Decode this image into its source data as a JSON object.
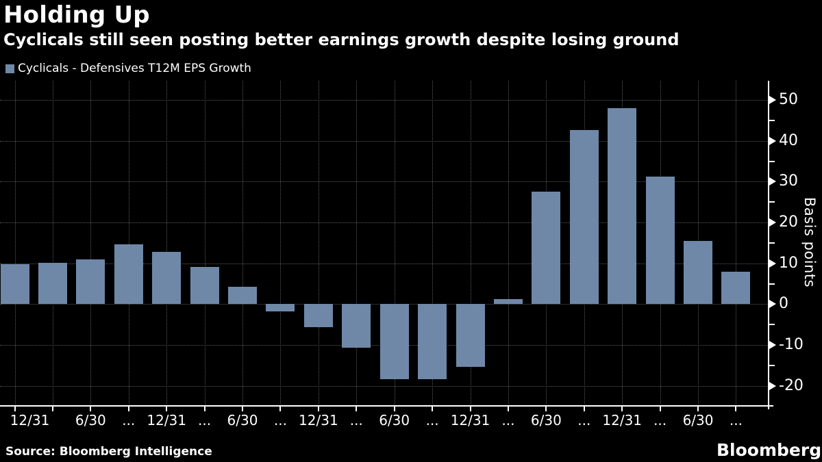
{
  "header": {
    "title": "Holding Up",
    "subtitle": "Cyclicals still seen posting better earnings growth despite losing ground"
  },
  "legend": {
    "label": "Cyclicals - Defensives T12M EPS Growth",
    "swatch_color": "#6f88a8"
  },
  "chart_data": {
    "type": "bar",
    "series_name": "Cyclicals - Defensives T12M EPS Growth",
    "title": "Holding Up",
    "xlabel": "",
    "ylabel": "Basis points",
    "x_tick_labels": [
      "12/31",
      "",
      "6/30",
      "...",
      "12/31",
      "...",
      "6/30",
      "...",
      "12/31",
      "...",
      "6/30",
      "...",
      "12/31",
      "...",
      "6/30",
      "...",
      "12/31",
      "...",
      "6/30",
      "..."
    ],
    "values": [
      9.8,
      10.2,
      11,
      14.7,
      12.8,
      9.1,
      4.2,
      -1.8,
      -5.7,
      -10.7,
      -18.4,
      -18.3,
      -15.3,
      1.3,
      27.6,
      42.7,
      48,
      31.2,
      15.5,
      8
    ],
    "y_ticks": [
      50,
      40,
      30,
      20,
      10,
      0,
      -10,
      -20
    ],
    "y_minor_ticks": [
      45,
      35,
      25,
      15,
      5,
      -5,
      -15
    ],
    "ylim": [
      -24.9,
      54.7
    ],
    "bar_color": "#6f88a8",
    "background_color": "#000000",
    "gridline_color": "#5a5a5a",
    "axis_color": "#ffffff",
    "grid": "dotted",
    "legend_position": "top-left",
    "y_axis_side": "right"
  },
  "footer": {
    "source": "Source: Bloomberg Intelligence",
    "brand": "Bloomberg"
  }
}
